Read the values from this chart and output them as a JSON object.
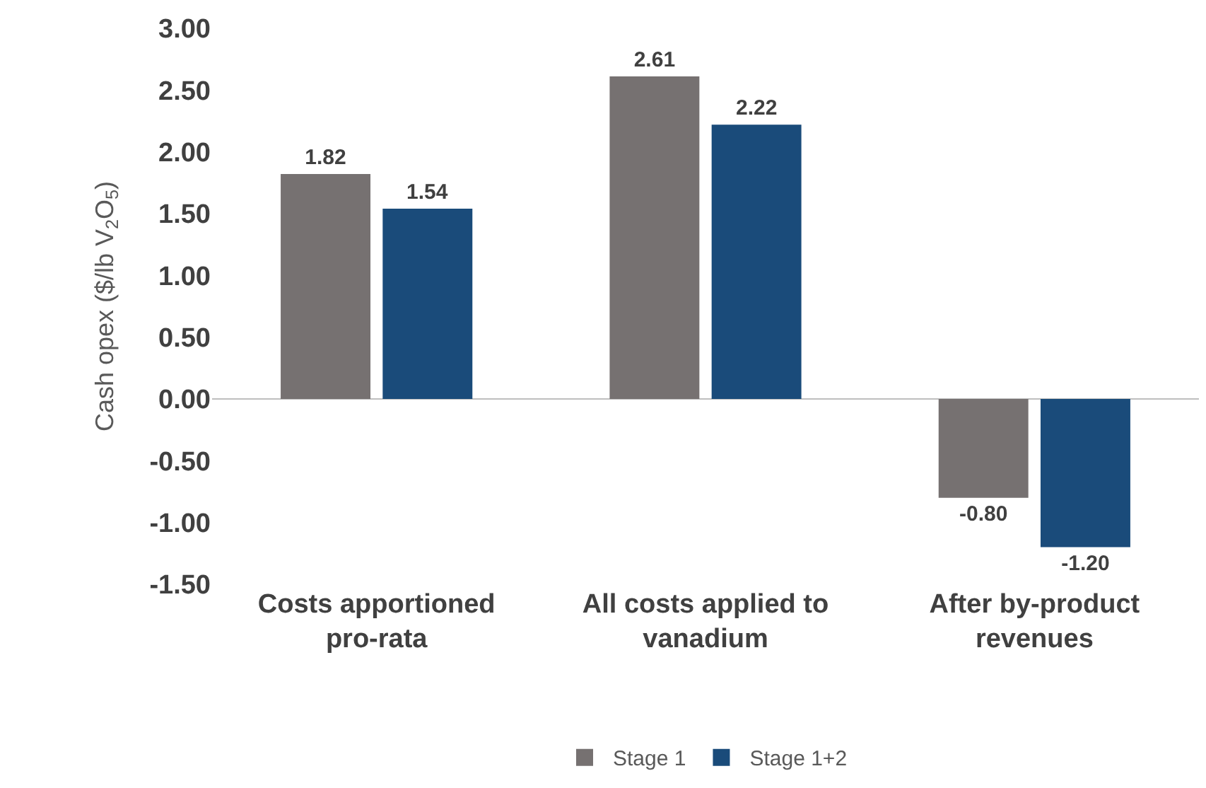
{
  "chart_data": {
    "type": "bar",
    "ylabel": "Cash opex ($/lb V$_{2}$O$_{5}$)",
    "categories": [
      "Costs apportioned pro-rata",
      "All costs applied to vanadium",
      "After by-product revenues"
    ],
    "series": [
      {
        "name": "Stage 1",
        "color": "#767171",
        "values": [
          1.82,
          2.61,
          -0.8
        ],
        "value_labels": [
          "1.82",
          "2.61",
          "-0.80"
        ]
      },
      {
        "name": "Stage 1+2",
        "color": "#1a4b7a",
        "values": [
          1.54,
          2.22,
          -1.2
        ],
        "value_labels": [
          "1.54",
          "2.22",
          "-1.20"
        ]
      }
    ],
    "ylim": [
      -1.5,
      3.0
    ],
    "yticks": [
      {
        "value": -1.5,
        "label": "-1.50"
      },
      {
        "value": -1.0,
        "label": "-1.00"
      },
      {
        "value": -0.5,
        "label": "-0.50"
      },
      {
        "value": 0,
        "label": "0.00"
      },
      {
        "value": 0.5,
        "label": "0.50"
      },
      {
        "value": 1.0,
        "label": "1.00"
      },
      {
        "value": 1.5,
        "label": "1.50"
      },
      {
        "value": 2.0,
        "label": "2.00"
      },
      {
        "value": 2.5,
        "label": "2.50"
      },
      {
        "value": 3.0,
        "label": "3.00"
      }
    ],
    "legend": "bottom"
  }
}
